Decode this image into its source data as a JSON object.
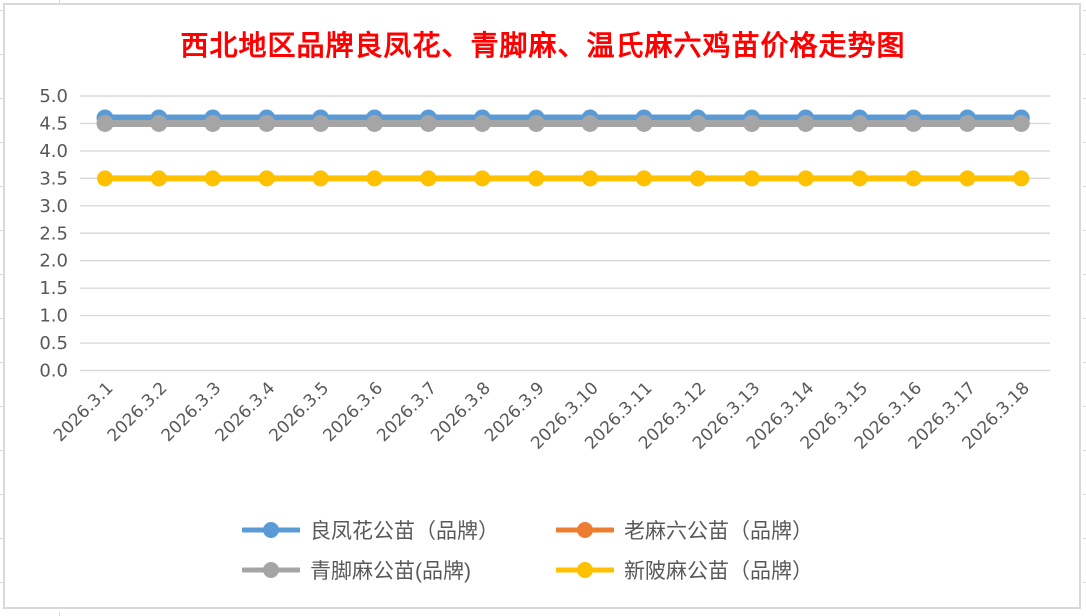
{
  "chart_data": {
    "type": "line",
    "title": "西北地区品牌良凤花、青脚麻、温氏麻六鸡苗价格走势图",
    "title_color": "#FF0000",
    "categories": [
      "2026.3.1",
      "2026.3.2",
      "2026.3.3",
      "2026.3.4",
      "2026.3.5",
      "2026.3.6",
      "2026.3.7",
      "2026.3.8",
      "2026.3.9",
      "2026.3.10",
      "2026.3.11",
      "2026.3.12",
      "2026.3.13",
      "2026.3.14",
      "2026.3.15",
      "2026.3.16",
      "2026.3.17",
      "2026.3.18"
    ],
    "series": [
      {
        "name": "良凤花公苗（品牌）",
        "color": "#5B9BD5",
        "visible_in_plot": true,
        "values": [
          4.6,
          4.6,
          4.6,
          4.6,
          4.6,
          4.6,
          4.6,
          4.6,
          4.6,
          4.6,
          4.6,
          4.6,
          4.6,
          4.6,
          4.6,
          4.6,
          4.6,
          4.6
        ]
      },
      {
        "name": "老麻六公苗（品牌）",
        "color": "#ED7D31",
        "visible_in_plot": false,
        "values": [
          3.5,
          3.5,
          3.5,
          3.5,
          3.5,
          3.5,
          3.5,
          3.5,
          3.5,
          3.5,
          3.5,
          3.5,
          3.5,
          3.5,
          3.5,
          3.5,
          3.5,
          3.5
        ]
      },
      {
        "name": "青脚麻公苗(品牌)",
        "color": "#A5A5A5",
        "visible_in_plot": true,
        "values": [
          4.5,
          4.5,
          4.5,
          4.5,
          4.5,
          4.5,
          4.5,
          4.5,
          4.5,
          4.5,
          4.5,
          4.5,
          4.5,
          4.5,
          4.5,
          4.5,
          4.5,
          4.5
        ]
      },
      {
        "name": "新陂麻公苗（品牌）",
        "color": "#FFC000",
        "visible_in_plot": true,
        "values": [
          3.5,
          3.5,
          3.5,
          3.5,
          3.5,
          3.5,
          3.5,
          3.5,
          3.5,
          3.5,
          3.5,
          3.5,
          3.5,
          3.5,
          3.5,
          3.5,
          3.5,
          3.5
        ]
      }
    ],
    "y_axis": {
      "min": 0.0,
      "max": 5.0,
      "step": 0.5,
      "tick_labels": [
        "0.0",
        "0.5",
        "1.0",
        "1.5",
        "2.0",
        "2.5",
        "3.0",
        "3.5",
        "4.0",
        "4.5",
        "5.0"
      ]
    },
    "x_axis": {
      "label_rotation_deg": 45
    },
    "legend": {
      "position": "bottom",
      "rows": 2,
      "columns": 2
    },
    "grid": true,
    "marker": "circle",
    "axis_text_color": "#595959",
    "gridline_color": "#D9D9D9"
  }
}
